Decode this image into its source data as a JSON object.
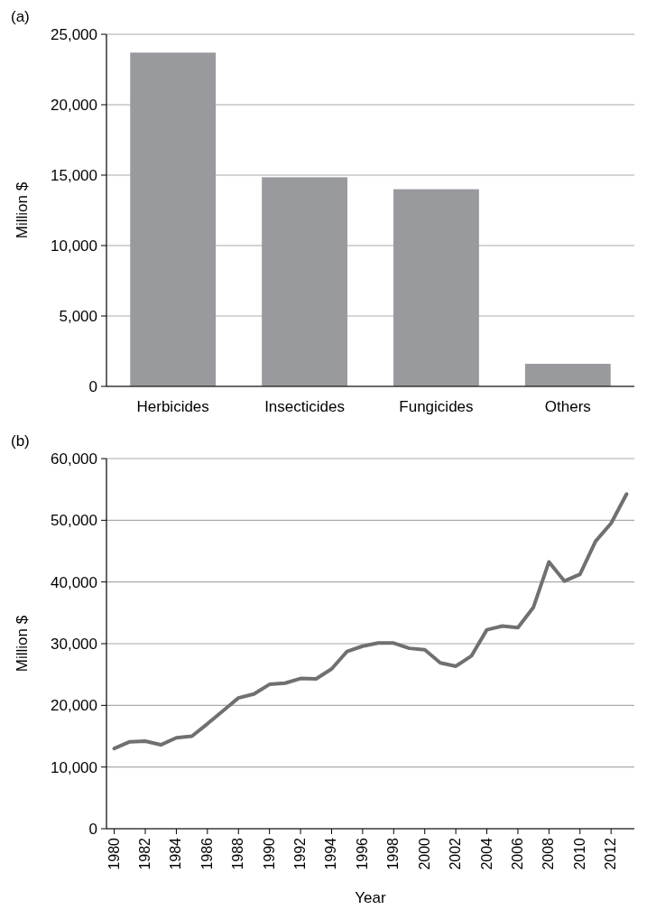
{
  "chart_data": [
    {
      "type": "bar",
      "title": "(a)",
      "ylabel": "Million $",
      "categories": [
        "Herbicides",
        "Insecticides",
        "Fungicides",
        "Others"
      ],
      "values": [
        23700,
        14850,
        14000,
        1600
      ],
      "color": "#999a9e",
      "ylim": [
        0,
        25000
      ],
      "yticks": [
        {
          "value": 0,
          "label": "0"
        },
        {
          "value": 5000,
          "label": "5,000"
        },
        {
          "value": 10000,
          "label": "10,000"
        },
        {
          "value": 15000,
          "label": "15,000"
        },
        {
          "value": 20000,
          "label": "20,000"
        },
        {
          "value": 25000,
          "label": "25,000"
        }
      ],
      "grid": "y"
    },
    {
      "type": "line",
      "title": "(b)",
      "ylabel": "Million $",
      "xlabel": "Year",
      "x": [
        1980,
        1981,
        1982,
        1983,
        1984,
        1985,
        1986,
        1987,
        1988,
        1989,
        1990,
        1991,
        1992,
        1993,
        1994,
        1995,
        1996,
        1997,
        1998,
        1999,
        2000,
        2001,
        2002,
        2003,
        2004,
        2005,
        2006,
        2007,
        2008,
        2009,
        2010,
        2011,
        2012,
        2013
      ],
      "series": [
        {
          "color": "#707070",
          "values": [
            13000,
            14100,
            14200,
            13600,
            14750,
            15000,
            17000,
            19100,
            21200,
            21850,
            23400,
            23600,
            24350,
            24300,
            25900,
            28750,
            29600,
            30100,
            30100,
            29250,
            29000,
            26900,
            26350,
            28000,
            32250,
            32850,
            32600,
            35900,
            43250,
            40150,
            41250,
            46600,
            49500,
            54250
          ]
        }
      ],
      "xlim": [
        1979.5,
        2013.5
      ],
      "xticks": [
        1980,
        1982,
        1984,
        1986,
        1988,
        1990,
        1992,
        1994,
        1996,
        1998,
        2000,
        2002,
        2004,
        2006,
        2008,
        2010,
        2012
      ],
      "ylim": [
        0,
        60000
      ],
      "yticks": [
        {
          "value": 0,
          "label": "0"
        },
        {
          "value": 10000,
          "label": "10,000"
        },
        {
          "value": 20000,
          "label": "20,000"
        },
        {
          "value": 30000,
          "label": "30,000"
        },
        {
          "value": 40000,
          "label": "40,000"
        },
        {
          "value": 50000,
          "label": "50,000"
        },
        {
          "value": 60000,
          "label": "60,000"
        }
      ],
      "grid": "y",
      "line_style": "solid"
    }
  ]
}
